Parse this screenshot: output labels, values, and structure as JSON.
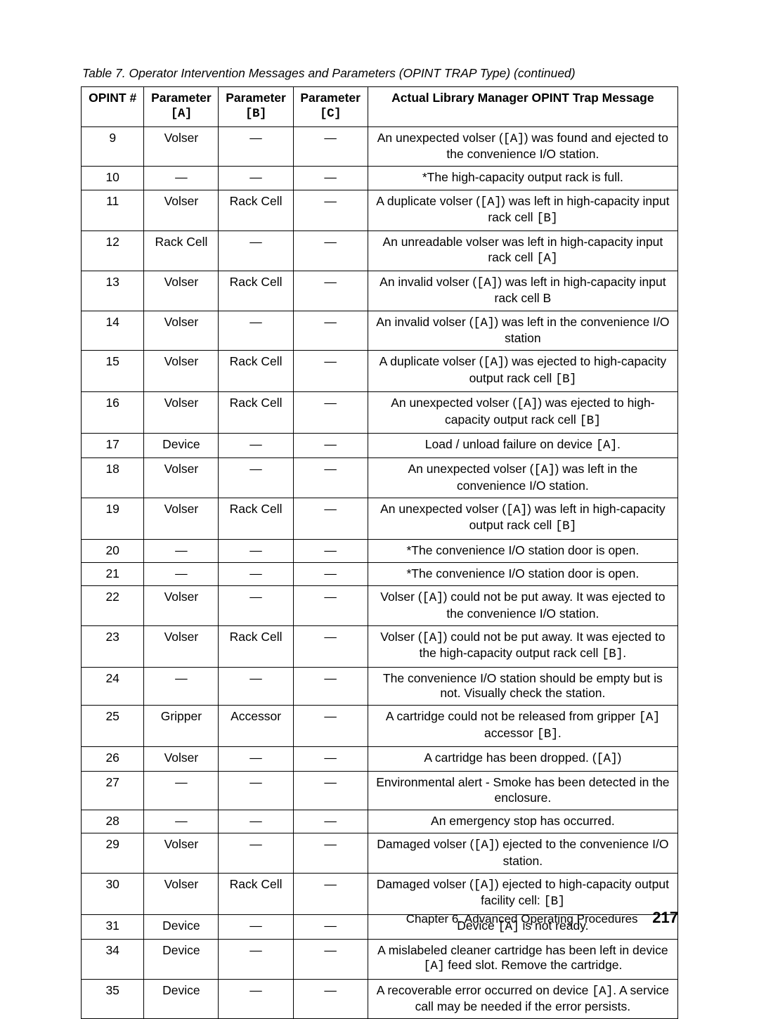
{
  "caption": "Table 7. Operator Intervention Messages and Parameters (OPINT TRAP Type)  (continued)",
  "columns": {
    "opint": "OPINT #",
    "a_pre": "Parameter",
    "a_code": "[A]",
    "b_pre": "Parameter",
    "b_code": "[B]",
    "c_pre": "Parameter",
    "c_code": "[C]",
    "msg": "Actual Library Manager OPINT Trap Message"
  },
  "footer": {
    "chapter": "Chapter 6. Advanced Operating Procedures",
    "page": "217"
  },
  "rows": [
    {
      "n": "9",
      "a": "Volser",
      "b": "—",
      "c": "—",
      "msg": [
        [
          "t",
          "An unexpected volser ("
        ],
        [
          "m",
          "[A]"
        ],
        [
          "t",
          ") was found and ejected to the convenience I/O station."
        ]
      ]
    },
    {
      "n": "10",
      "a": "—",
      "b": "—",
      "c": "—",
      "msg": [
        [
          "t",
          "*The high-capacity output rack is full."
        ]
      ]
    },
    {
      "n": "11",
      "a": "Volser",
      "b": "Rack Cell",
      "c": "—",
      "msg": [
        [
          "t",
          "A duplicate volser ("
        ],
        [
          "m",
          "[A]"
        ],
        [
          "t",
          ") was left in high-capacity input rack cell "
        ],
        [
          "m",
          "[B]"
        ]
      ]
    },
    {
      "n": "12",
      "a": "Rack Cell",
      "b": "—",
      "c": "—",
      "msg": [
        [
          "t",
          "An unreadable volser was left in high-capacity input rack cell "
        ],
        [
          "m",
          "[A]"
        ]
      ]
    },
    {
      "n": "13",
      "a": "Volser",
      "b": "Rack Cell",
      "c": "—",
      "msg": [
        [
          "t",
          "An invalid volser ("
        ],
        [
          "m",
          "[A]"
        ],
        [
          "t",
          ") was left in high-capacity input rack cell B"
        ]
      ]
    },
    {
      "n": "14",
      "a": "Volser",
      "b": "—",
      "c": "—",
      "msg": [
        [
          "t",
          "An invalid volser ("
        ],
        [
          "m",
          "[A]"
        ],
        [
          "t",
          ") was left in the convenience I/O station"
        ]
      ]
    },
    {
      "n": "15",
      "a": "Volser",
      "b": "Rack Cell",
      "c": "—",
      "msg": [
        [
          "t",
          "A duplicate volser ("
        ],
        [
          "m",
          "[A]"
        ],
        [
          "t",
          ") was ejected to high-capacity output rack cell "
        ],
        [
          "m",
          "[B]"
        ]
      ]
    },
    {
      "n": "16",
      "a": "Volser",
      "b": "Rack Cell",
      "c": "—",
      "msg": [
        [
          "t",
          "An unexpected volser ("
        ],
        [
          "m",
          "[A]"
        ],
        [
          "t",
          ") was ejected to high-capacity output rack cell "
        ],
        [
          "m",
          "[B]"
        ]
      ]
    },
    {
      "n": "17",
      "a": "Device",
      "b": "—",
      "c": "—",
      "msg": [
        [
          "t",
          "Load / unload failure on device "
        ],
        [
          "m",
          "[A]"
        ],
        [
          "t",
          "."
        ]
      ]
    },
    {
      "n": "18",
      "a": "Volser",
      "b": "—",
      "c": "—",
      "msg": [
        [
          "t",
          "An unexpected volser ("
        ],
        [
          "m",
          "[A]"
        ],
        [
          "t",
          ") was left in the convenience I/O station."
        ]
      ]
    },
    {
      "n": "19",
      "a": "Volser",
      "b": "Rack Cell",
      "c": "—",
      "msg": [
        [
          "t",
          "An unexpected volser ("
        ],
        [
          "m",
          "[A]"
        ],
        [
          "t",
          ") was left in high-capacity output rack cell "
        ],
        [
          "m",
          "[B]"
        ]
      ]
    },
    {
      "n": "20",
      "a": "—",
      "b": "—",
      "c": "—",
      "msg": [
        [
          "t",
          "*The convenience I/O station door is open."
        ]
      ]
    },
    {
      "n": "21",
      "a": "—",
      "b": "—",
      "c": "—",
      "msg": [
        [
          "t",
          "*The convenience I/O station door is open."
        ]
      ]
    },
    {
      "n": "22",
      "a": "Volser",
      "b": "—",
      "c": "—",
      "msg": [
        [
          "t",
          "Volser ("
        ],
        [
          "m",
          "[A]"
        ],
        [
          "t",
          ") could not be put away. It was ejected to the convenience I/O station."
        ]
      ]
    },
    {
      "n": "23",
      "a": "Volser",
      "b": "Rack Cell",
      "c": "—",
      "msg": [
        [
          "t",
          "Volser ("
        ],
        [
          "m",
          "[A]"
        ],
        [
          "t",
          ") could not be put away. It was ejected to the high-capacity output rack cell "
        ],
        [
          "m",
          "[B]"
        ],
        [
          "t",
          "."
        ]
      ]
    },
    {
      "n": "24",
      "a": "—",
      "b": "—",
      "c": "—",
      "msg": [
        [
          "t",
          "The convenience I/O station should be empty but is not. Visually check the station."
        ]
      ]
    },
    {
      "n": "25",
      "a": "Gripper",
      "b": "Accessor",
      "c": "—",
      "msg": [
        [
          "t",
          "A cartridge could not be released from gripper "
        ],
        [
          "m",
          "[A]"
        ],
        [
          "t",
          " accessor "
        ],
        [
          "m",
          "[B]"
        ],
        [
          "t",
          "."
        ]
      ]
    },
    {
      "n": "26",
      "a": "Volser",
      "b": "—",
      "c": "—",
      "msg": [
        [
          "t",
          "A cartridge has been dropped. ("
        ],
        [
          "m",
          "[A]"
        ],
        [
          "t",
          ")"
        ]
      ]
    },
    {
      "n": "27",
      "a": "—",
      "b": "—",
      "c": "—",
      "msg": [
        [
          "t",
          "Environmental alert - Smoke has been detected in the enclosure."
        ]
      ]
    },
    {
      "n": "28",
      "a": "—",
      "b": "—",
      "c": "—",
      "msg": [
        [
          "t",
          "An emergency stop has occurred."
        ]
      ]
    },
    {
      "n": "29",
      "a": "Volser",
      "b": "—",
      "c": "—",
      "msg": [
        [
          "t",
          "Damaged volser ("
        ],
        [
          "m",
          "[A]"
        ],
        [
          "t",
          ") ejected to the convenience I/O station."
        ]
      ]
    },
    {
      "n": "30",
      "a": "Volser",
      "b": "Rack Cell",
      "c": "—",
      "msg": [
        [
          "t",
          "Damaged volser ("
        ],
        [
          "m",
          "[A]"
        ],
        [
          "t",
          ") ejected to high-capacity output facility cell: "
        ],
        [
          "m",
          "[B]"
        ]
      ]
    },
    {
      "n": "31",
      "a": "Device",
      "b": "—",
      "c": "—",
      "msg": [
        [
          "t",
          "Device "
        ],
        [
          "m",
          "[A]"
        ],
        [
          "t",
          " is not ready."
        ]
      ]
    },
    {
      "n": "34",
      "a": "Device",
      "b": "—",
      "c": "—",
      "msg": [
        [
          "t",
          "A mislabeled cleaner cartridge has been left in device "
        ],
        [
          "m",
          "[A]"
        ],
        [
          "t",
          " feed slot. Remove the cartridge."
        ]
      ]
    },
    {
      "n": "35",
      "a": "Device",
      "b": "—",
      "c": "—",
      "msg": [
        [
          "t",
          "A recoverable error occurred on device "
        ],
        [
          "m",
          "[A]"
        ],
        [
          "t",
          ". A service call may be needed if the error persists."
        ]
      ]
    }
  ]
}
